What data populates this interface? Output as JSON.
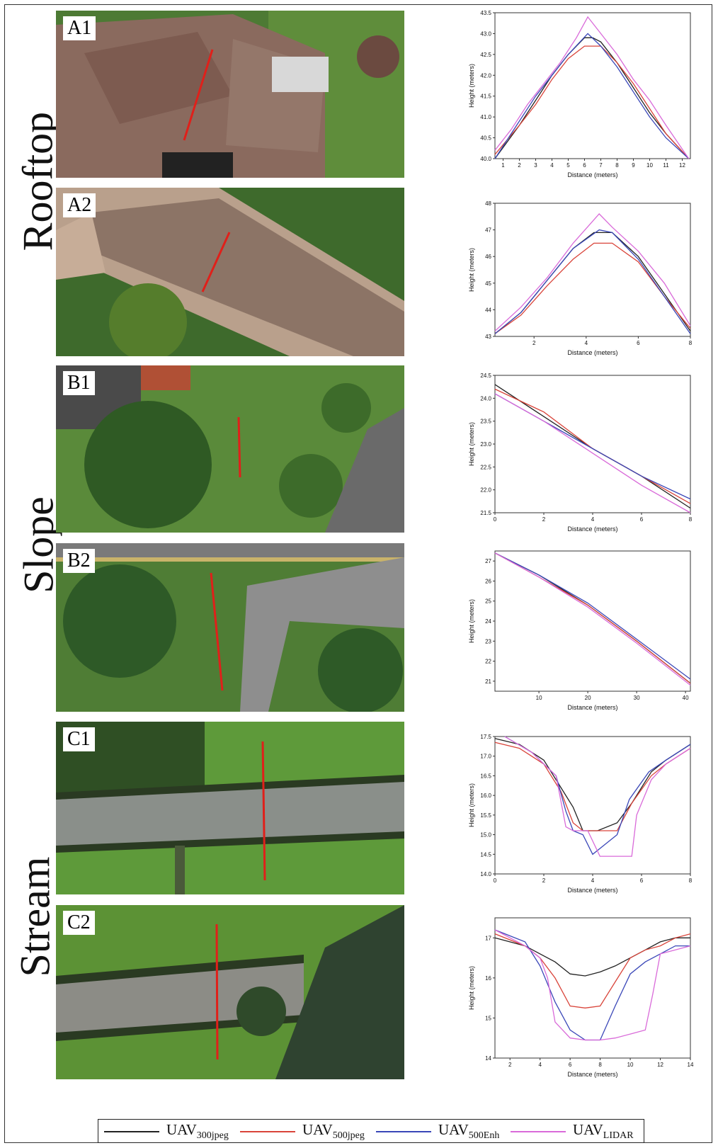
{
  "groups": [
    {
      "label": "Rooftop"
    },
    {
      "label": "Slope"
    },
    {
      "label": "Stream"
    }
  ],
  "panels": [
    {
      "tag": "A1",
      "scene": "rooftop-hip"
    },
    {
      "tag": "A2",
      "scene": "rooftop-ridge"
    },
    {
      "tag": "B1",
      "scene": "slope-lawn"
    },
    {
      "tag": "B2",
      "scene": "slope-parking"
    },
    {
      "tag": "C1",
      "scene": "stream-channel"
    },
    {
      "tag": "C2",
      "scene": "stream-bend"
    }
  ],
  "legend": [
    {
      "base": "UAV",
      "sub": "300jpeg",
      "color": "#222222"
    },
    {
      "base": "UAV",
      "sub": "500jpeg",
      "color": "#d9443a"
    },
    {
      "base": "UAV",
      "sub": "500Enh",
      "color": "#3a47b8"
    },
    {
      "base": "UAV",
      "sub": "LIDAR",
      "color": "#d96ad9"
    }
  ],
  "chart_data": [
    {
      "type": "line",
      "id": "A1",
      "xlabel": "Distance (meters)",
      "ylabel": "Height (meters)",
      "xlim": [
        0.5,
        12.5
      ],
      "ylim": [
        40.0,
        43.5
      ],
      "xticks": [
        "1",
        "2",
        "3",
        "4",
        "5",
        "6",
        "7",
        "8",
        "9",
        "10",
        "11",
        "12"
      ],
      "yticks": [
        "40.0",
        "40.5",
        "41.0",
        "41.5",
        "42.0",
        "42.5",
        "43.0",
        "43.5"
      ],
      "series": [
        {
          "name": "UAV300jpeg",
          "color": "#222222",
          "x": [
            0.5,
            2,
            3,
            4,
            5,
            6,
            6.5,
            7,
            8,
            9,
            10,
            11,
            12.4
          ],
          "y": [
            40.0,
            40.8,
            41.4,
            42.0,
            42.5,
            42.9,
            42.9,
            42.8,
            42.3,
            41.7,
            41.1,
            40.6,
            40.0
          ]
        },
        {
          "name": "UAV500jpeg",
          "color": "#d9443a",
          "x": [
            0.5,
            2,
            3,
            4,
            5,
            6,
            7,
            8,
            9,
            10,
            11,
            12.4
          ],
          "y": [
            40.1,
            40.8,
            41.3,
            41.9,
            42.4,
            42.7,
            42.7,
            42.3,
            41.8,
            41.2,
            40.6,
            40.0
          ]
        },
        {
          "name": "UAV500Enh",
          "color": "#3a47b8",
          "x": [
            0.5,
            2,
            3,
            4,
            5,
            6.2,
            7,
            8,
            9,
            10,
            11,
            12.4
          ],
          "y": [
            40.0,
            40.9,
            41.5,
            42.0,
            42.5,
            43.0,
            42.7,
            42.2,
            41.6,
            41.0,
            40.5,
            40.0
          ]
        },
        {
          "name": "UAVLIDAR",
          "color": "#d96ad9",
          "x": [
            0.5,
            1.5,
            2.5,
            3.5,
            4.5,
            5.5,
            6.2,
            7,
            8,
            9,
            10,
            11,
            12.4
          ],
          "y": [
            40.2,
            40.7,
            41.3,
            41.8,
            42.3,
            42.9,
            43.4,
            43.0,
            42.5,
            41.9,
            41.4,
            40.8,
            40.0
          ]
        }
      ]
    },
    {
      "type": "line",
      "id": "A2",
      "xlabel": "Distance (meters)",
      "ylabel": "Height (meters)",
      "xlim": [
        0.5,
        8
      ],
      "ylim": [
        43,
        48
      ],
      "xticks": [
        "2",
        "4",
        "6",
        "8"
      ],
      "yticks": [
        "43",
        "44",
        "45",
        "46",
        "47",
        "48"
      ],
      "series": [
        {
          "name": "UAV300jpeg",
          "color": "#222222",
          "x": [
            0.5,
            1.5,
            2.5,
            3.5,
            4.3,
            5,
            6,
            7,
            8
          ],
          "y": [
            43.1,
            43.9,
            45.1,
            46.3,
            46.9,
            46.9,
            46.0,
            44.6,
            43.2
          ]
        },
        {
          "name": "UAV500jpeg",
          "color": "#d9443a",
          "x": [
            0.5,
            1.5,
            2.5,
            3.5,
            4.3,
            5,
            6,
            7,
            8
          ],
          "y": [
            43.1,
            43.8,
            44.9,
            45.9,
            46.5,
            46.5,
            45.8,
            44.5,
            43.3
          ]
        },
        {
          "name": "UAV500Enh",
          "color": "#3a47b8",
          "x": [
            0.5,
            1.5,
            2.5,
            3.5,
            4.5,
            5,
            6,
            7,
            8
          ],
          "y": [
            43.1,
            43.9,
            45.1,
            46.3,
            47.0,
            46.9,
            45.9,
            44.5,
            43.1
          ]
        },
        {
          "name": "UAVLIDAR",
          "color": "#d96ad9",
          "x": [
            0.5,
            1.5,
            2.5,
            3.5,
            4.5,
            5,
            6,
            7,
            8
          ],
          "y": [
            43.2,
            44.1,
            45.2,
            46.5,
            47.6,
            47.1,
            46.2,
            45.0,
            43.4
          ]
        }
      ]
    },
    {
      "type": "line",
      "id": "B1",
      "xlabel": "Distance (meters)",
      "ylabel": "Height (meters)",
      "xlim": [
        0,
        8
      ],
      "ylim": [
        21.5,
        24.5
      ],
      "xticks": [
        "0",
        "2",
        "4",
        "6",
        "8"
      ],
      "yticks": [
        "21.5",
        "22.0",
        "22.5",
        "23.0",
        "23.5",
        "24.0",
        "24.5"
      ],
      "series": [
        {
          "name": "UAV300jpeg",
          "color": "#222222",
          "x": [
            0,
            2,
            4,
            6,
            8
          ],
          "y": [
            24.3,
            23.6,
            22.9,
            22.3,
            21.6
          ]
        },
        {
          "name": "UAV500jpeg",
          "color": "#d9443a",
          "x": [
            0,
            2,
            4,
            6,
            8
          ],
          "y": [
            24.2,
            23.7,
            22.9,
            22.3,
            21.7
          ]
        },
        {
          "name": "UAV500Enh",
          "color": "#3a47b8",
          "x": [
            0,
            2,
            4,
            6,
            8
          ],
          "y": [
            24.1,
            23.5,
            22.9,
            22.3,
            21.8
          ]
        },
        {
          "name": "UAVLIDAR",
          "color": "#d96ad9",
          "x": [
            0,
            2,
            4,
            6,
            8
          ],
          "y": [
            24.1,
            23.5,
            22.8,
            22.1,
            21.5
          ]
        }
      ]
    },
    {
      "type": "line",
      "id": "B2",
      "xlabel": "Distance (meters)",
      "ylabel": "Height (meters)",
      "xlim": [
        1,
        41
      ],
      "ylim": [
        20.5,
        27.5
      ],
      "xticks": [
        "10",
        "20",
        "30",
        "40"
      ],
      "yticks": [
        "21",
        "22",
        "23",
        "24",
        "25",
        "26",
        "27"
      ],
      "series": [
        {
          "name": "UAV300jpeg",
          "color": "#222222",
          "x": [
            1,
            10,
            20,
            30,
            41
          ],
          "y": [
            27.4,
            26.3,
            24.8,
            23.0,
            20.9
          ]
        },
        {
          "name": "UAV500jpeg",
          "color": "#d9443a",
          "x": [
            1,
            10,
            20,
            30,
            41
          ],
          "y": [
            27.4,
            26.2,
            24.8,
            23.0,
            20.9
          ]
        },
        {
          "name": "UAV500Enh",
          "color": "#3a47b8",
          "x": [
            1,
            10,
            20,
            30,
            41
          ],
          "y": [
            27.4,
            26.3,
            24.9,
            23.1,
            21.1
          ]
        },
        {
          "name": "UAVLIDAR",
          "color": "#d96ad9",
          "x": [
            1,
            10,
            20,
            30,
            41
          ],
          "y": [
            27.4,
            26.2,
            24.7,
            22.9,
            20.8
          ]
        }
      ]
    },
    {
      "type": "line",
      "id": "C1",
      "xlabel": "Distance (meters)",
      "ylabel": "Height (meters)",
      "xlim": [
        0,
        8
      ],
      "ylim": [
        14.0,
        17.5
      ],
      "xticks": [
        "0",
        "2",
        "4",
        "6",
        "8"
      ],
      "yticks": [
        "14.0",
        "14.5",
        "15.0",
        "15.5",
        "16.0",
        "16.5",
        "17.0",
        "17.5"
      ],
      "series": [
        {
          "name": "UAV300jpeg",
          "color": "#222222",
          "x": [
            0,
            1,
            2,
            2.6,
            3.2,
            3.6,
            4.2,
            5,
            5.6,
            6.4,
            7,
            8
          ],
          "y": [
            17.45,
            17.3,
            16.9,
            16.3,
            15.7,
            15.1,
            15.1,
            15.3,
            15.8,
            16.6,
            16.9,
            17.3
          ]
        },
        {
          "name": "UAV500jpeg",
          "color": "#d9443a",
          "x": [
            0,
            1,
            2,
            2.7,
            3.2,
            3.6,
            4.2,
            5,
            5.6,
            6.4,
            7,
            8
          ],
          "y": [
            17.35,
            17.2,
            16.8,
            16.1,
            15.3,
            15.1,
            15.1,
            15.1,
            15.8,
            16.5,
            16.8,
            17.2
          ]
        },
        {
          "name": "UAV500Enh",
          "color": "#3a47b8",
          "x": [
            0.4,
            1.5,
            2.5,
            2.9,
            3.2,
            3.6,
            4.0,
            4.4,
            5,
            5.5,
            6.3,
            7,
            8
          ],
          "y": [
            17.5,
            17.1,
            16.5,
            15.6,
            15.1,
            15.0,
            14.5,
            14.7,
            15.0,
            15.9,
            16.6,
            16.9,
            17.3
          ]
        },
        {
          "name": "UAVLIDAR",
          "color": "#d96ad9",
          "x": [
            0.4,
            1.5,
            2.5,
            2.9,
            3.2,
            3.8,
            4.3,
            5.6,
            5.8,
            6.4,
            7,
            8
          ],
          "y": [
            17.5,
            17.1,
            16.5,
            15.2,
            15.1,
            15.1,
            14.45,
            14.45,
            15.5,
            16.4,
            16.8,
            17.2
          ]
        }
      ]
    },
    {
      "type": "line",
      "id": "C2",
      "xlabel": "Distance (meters)",
      "ylabel": "Height (meters)",
      "xlim": [
        1,
        14
      ],
      "ylim": [
        14,
        17.5
      ],
      "xticks": [
        "2",
        "4",
        "6",
        "8",
        "10",
        "12",
        "14"
      ],
      "yticks": [
        "14",
        "15",
        "16",
        "17"
      ],
      "series": [
        {
          "name": "UAV300jpeg",
          "color": "#222222",
          "x": [
            1,
            3,
            4,
            5,
            6,
            7,
            8,
            9,
            10,
            11,
            12,
            13,
            14
          ],
          "y": [
            17.0,
            16.8,
            16.6,
            16.4,
            16.1,
            16.05,
            16.15,
            16.3,
            16.5,
            16.7,
            16.9,
            17.0,
            17.0
          ]
        },
        {
          "name": "UAV500jpeg",
          "color": "#d9443a",
          "x": [
            1,
            3,
            4,
            5,
            6,
            7,
            8,
            9,
            10,
            11,
            12,
            13,
            14
          ],
          "y": [
            17.1,
            16.8,
            16.5,
            16.0,
            15.3,
            15.25,
            15.3,
            15.9,
            16.5,
            16.7,
            16.8,
            17.0,
            17.1
          ]
        },
        {
          "name": "UAV500Enh",
          "color": "#3a47b8",
          "x": [
            1,
            3,
            4,
            5,
            6,
            7,
            8,
            9,
            10,
            11,
            12,
            13,
            14
          ],
          "y": [
            17.2,
            16.9,
            16.3,
            15.4,
            14.7,
            14.45,
            14.45,
            15.3,
            16.1,
            16.4,
            16.6,
            16.8,
            16.8
          ]
        },
        {
          "name": "UAVLIDAR",
          "color": "#d96ad9",
          "x": [
            1,
            3,
            4,
            4.5,
            5,
            6,
            7,
            8,
            9,
            10,
            11,
            11.5,
            12,
            13,
            14
          ],
          "y": [
            17.2,
            16.8,
            16.5,
            16.0,
            14.9,
            14.5,
            14.45,
            14.45,
            14.5,
            14.6,
            14.7,
            15.6,
            16.6,
            16.7,
            16.8
          ]
        }
      ]
    }
  ]
}
